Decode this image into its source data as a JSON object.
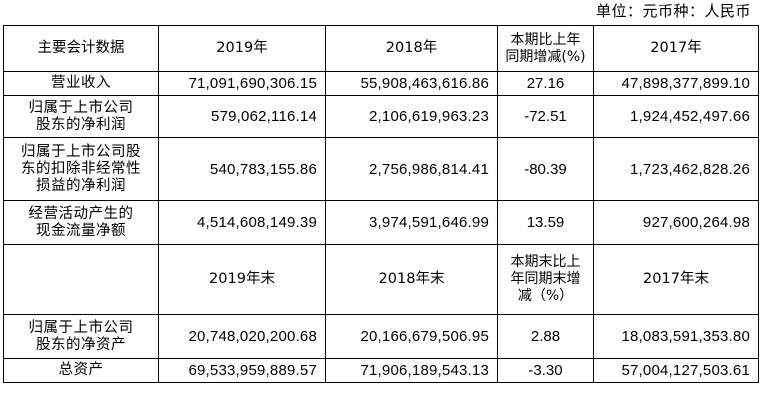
{
  "unit_note": "单位：元币种：人民币",
  "header": {
    "label_col": "主要会计数据",
    "col_2019": "2019年",
    "col_2018": "2018年",
    "col_change": [
      "本期比上年",
      "同期增减(%)"
    ],
    "col_2017": "2017年"
  },
  "rows": [
    {
      "label": [
        "营业收入"
      ],
      "v2019": "71,091,690,306.15",
      "v2018": "55,908,463,616.86",
      "change": "27.16",
      "v2017": "47,898,377,899.10"
    },
    {
      "label": [
        "归属于上市公司",
        "股东的净利润"
      ],
      "v2019": "579,062,116.14",
      "v2018": "2,106,619,963.23",
      "change": "-72.51",
      "v2017": "1,924,452,497.66"
    },
    {
      "label": [
        "归属于上市公司股",
        "东的扣除非经常性",
        "损益的净利润"
      ],
      "v2019": "540,783,155.86",
      "v2018": "2,756,986,814.41",
      "change": "-80.39",
      "v2017": "1,723,462,828.26"
    },
    {
      "label": [
        "经营活动产生的",
        "现金流量净额"
      ],
      "v2019": "4,514,608,149.39",
      "v2018": "3,974,591,646.99",
      "change": "13.59",
      "v2017": "927,600,264.98"
    }
  ],
  "header2": {
    "label_col": "",
    "col_2019": "2019年末",
    "col_2018": "2018年末",
    "col_change": [
      "本期末比上",
      "年同期末增",
      "减（%）"
    ],
    "col_2017": "2017年末"
  },
  "rows2": [
    {
      "label": [
        "归属于上市公司",
        "股东的净资产"
      ],
      "v2019": "20,748,020,200.68",
      "v2018": "20,166,679,506.95",
      "change": "2.88",
      "v2017": "18,083,591,353.80"
    },
    {
      "label": [
        "总资产"
      ],
      "v2019": "69,533,959,889.57",
      "v2018": "71,906,189,543.13",
      "change": "-3.30",
      "v2017": "57,004,127,503.61"
    }
  ]
}
